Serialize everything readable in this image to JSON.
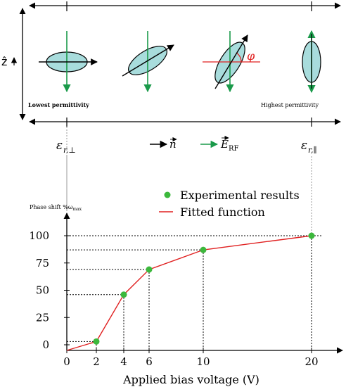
{
  "diagram": {
    "z_axis_label": "ẑ",
    "lowest_label": "Lowest permittivity",
    "highest_label": "Highest permittivity",
    "eps_perp": "ε",
    "eps_perp_sub": "r,⊥",
    "eps_par": "ε",
    "eps_par_sub": "r,∥",
    "phi_label": "φ",
    "legend_n": "n",
    "legend_E": "E",
    "legend_E_sub": "RF",
    "colors": {
      "ellipse_fill": "#a8dcdc",
      "rf_green": "#1a9a4a",
      "phi_red": "#e02020",
      "dashed": "#999999"
    }
  },
  "chart_data": {
    "type": "line",
    "ylabel": "Phase shift %ω",
    "ylabel_sub": "max",
    "xlabel": "Applied bias voltage (V)",
    "x_ticks": [
      0,
      2,
      4,
      6,
      10,
      20
    ],
    "y_ticks": [
      0,
      25,
      50,
      75,
      100
    ],
    "series": [
      {
        "name": "Experimental results",
        "style": "points",
        "color": "#3cb83c",
        "x": [
          2,
          4,
          6,
          10,
          20
        ],
        "y": [
          3,
          46,
          69,
          87,
          100
        ]
      },
      {
        "name": "Fitted function",
        "style": "line",
        "color": "#e02020",
        "x": [
          0,
          2,
          4,
          6,
          10,
          20
        ],
        "y": [
          0,
          3,
          46,
          69,
          87,
          100
        ]
      }
    ],
    "xlim": [
      0,
      20
    ],
    "ylim": [
      0,
      100
    ],
    "x_scale": "nonuniform",
    "legend_position": "top-right"
  }
}
